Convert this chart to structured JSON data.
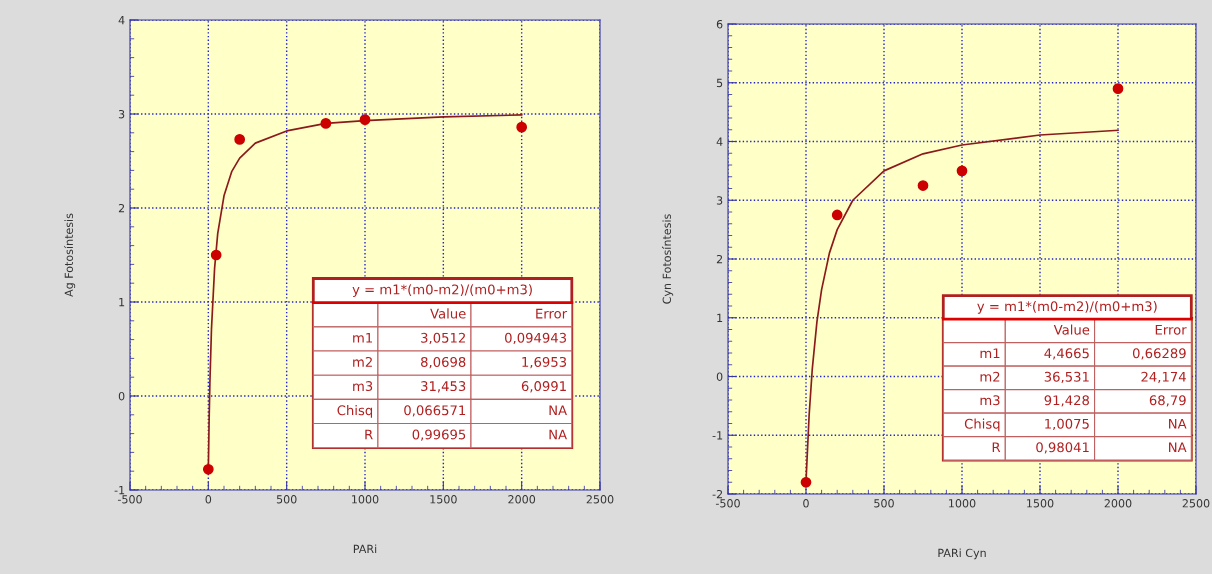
{
  "chart_data": [
    {
      "type": "scatter",
      "xlabel": "PARi",
      "ylabel": "Ag Fotosíntesis",
      "xlim": [
        -500,
        2500
      ],
      "ylim": [
        -1,
        4
      ],
      "xticks": [
        -500,
        0,
        500,
        1000,
        1500,
        2000,
        2500
      ],
      "yticks": [
        -1,
        0,
        1,
        2,
        3,
        4
      ],
      "grid": true,
      "series": [
        {
          "marker": "circle",
          "color": "#cc0000",
          "x": [
            0,
            50,
            200,
            750,
            1000,
            2000
          ],
          "values": [
            -0.78,
            1.5,
            2.73,
            2.9,
            2.94,
            2.86
          ]
        },
        {
          "type": "line",
          "marker": "none",
          "color": "#8b1a1a",
          "x": [
            0,
            5,
            10,
            20,
            40,
            60,
            100,
            150,
            200,
            300,
            500,
            750,
            1000,
            1500,
            2000
          ],
          "values": [
            -0.78,
            -0.26,
            0.14,
            0.71,
            1.36,
            1.73,
            2.13,
            2.39,
            2.53,
            2.69,
            2.82,
            2.9,
            2.93,
            2.97,
            2.99
          ]
        }
      ],
      "annotations": [
        "y = m1*(m0-m2)/(m0+m3)",
        "Value",
        "Error",
        "m1",
        "3,0512",
        "0,094943",
        "m2",
        "8,0698",
        "1,6953",
        "m3",
        "31,453",
        "6,0991",
        "Chisq",
        "0,066571",
        "NA",
        "R",
        "0,99695",
        "NA"
      ]
    },
    {
      "type": "scatter",
      "xlabel": "PARi Cyn",
      "ylabel": "Cyn Fotosíntesis",
      "xlim": [
        -500,
        2500
      ],
      "ylim": [
        -2,
        6
      ],
      "xticks": [
        -500,
        0,
        500,
        1000,
        1500,
        2000,
        2500
      ],
      "yticks": [
        -2,
        -1,
        0,
        1,
        2,
        3,
        4,
        5,
        6
      ],
      "grid": true,
      "series": [
        {
          "marker": "circle",
          "color": "#cc0000",
          "x": [
            0,
            200,
            750,
            1000,
            2000
          ],
          "values": [
            -1.8,
            2.75,
            3.25,
            3.5,
            4.9
          ]
        },
        {
          "type": "line",
          "marker": "none",
          "color": "#8b1a1a",
          "x": [
            0,
            20,
            40,
            70,
            100,
            150,
            200,
            300,
            500,
            750,
            1000,
            1500,
            2000
          ],
          "values": [
            -1.79,
            -0.66,
            0.12,
            0.93,
            1.48,
            2.1,
            2.5,
            3.0,
            3.5,
            3.79,
            3.94,
            4.11,
            4.19
          ]
        }
      ],
      "annotations": [
        "y = m1*(m0-m2)/(m0+m3)",
        "Value",
        "Error",
        "m1",
        "4,4665",
        "0,66289",
        "m2",
        "36,531",
        "24,174",
        "m3",
        "91,428",
        "68,79",
        "Chisq",
        "1,0075",
        "NA",
        "R",
        "0,98041",
        "NA"
      ]
    }
  ]
}
